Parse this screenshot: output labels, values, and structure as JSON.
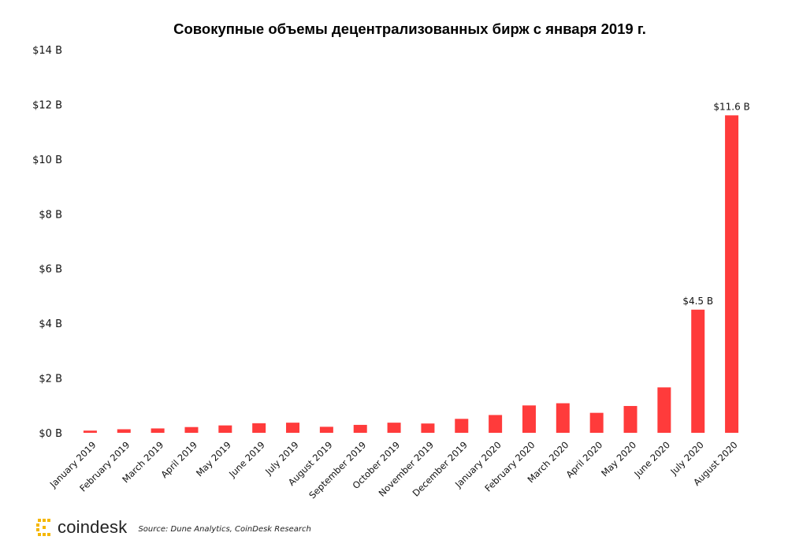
{
  "chart_data": {
    "type": "bar",
    "title": "Совокупные объемы децентрализованных бирж с января 2019 г.",
    "categories": [
      "January 2019",
      "February 2019",
      "March 2019",
      "April 2019",
      "May 2019",
      "June 2019",
      "July 2019",
      "August 2019",
      "September 2019",
      "October 2019",
      "November 2019",
      "December 2019",
      "January 2020",
      "February 2020",
      "March 2020",
      "April 2020",
      "May 2020",
      "June 2020",
      "July 2020",
      "August 2020"
    ],
    "values": [
      0.08,
      0.13,
      0.16,
      0.21,
      0.27,
      0.35,
      0.37,
      0.22,
      0.29,
      0.37,
      0.34,
      0.51,
      0.65,
      1.0,
      1.08,
      0.73,
      0.98,
      1.66,
      4.5,
      11.6
    ],
    "ylim": [
      0,
      14
    ],
    "yticks": [
      0,
      2,
      4,
      6,
      8,
      10,
      12,
      14
    ],
    "ytick_labels": [
      "$0 B",
      "$2 B",
      "$4 B",
      "$6 B",
      "$8 B",
      "$10 B",
      "$12 B",
      "$14 B"
    ],
    "data_labels": [
      {
        "index": 18,
        "text": "$4.5 B"
      },
      {
        "index": 19,
        "text": "$11.6 B"
      }
    ],
    "bar_color": "#ff3b3b",
    "grid": false,
    "xlabel": "",
    "ylabel": ""
  },
  "footer": {
    "brand": "coindesk",
    "source": "Source: Dune Analytics, CoinDesk Research",
    "brand_color": "#f5b700"
  }
}
